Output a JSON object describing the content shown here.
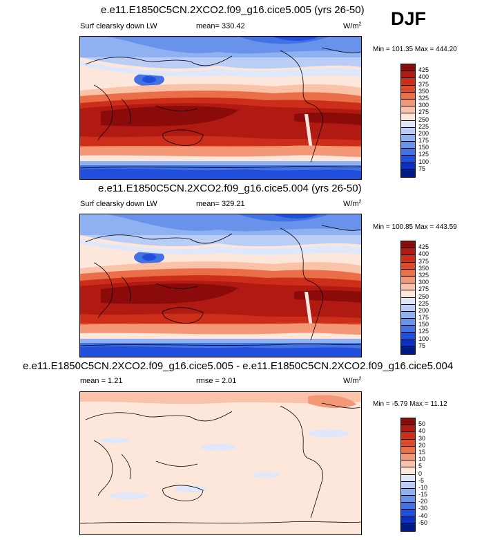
{
  "season": "DJF",
  "panels": [
    {
      "title": "e.e11.E1850C5CN.2XCO2.f09_g16.cice5.005 (yrs 26-50)",
      "left_label": "Surf clearsky down LW",
      "mean_text": "mean= 330.42",
      "units": "W/m",
      "units_sup": "2",
      "minmax": "Min = 101.35 Max = 444.20"
    },
    {
      "title": "e.e11.E1850C5CN.2XCO2.f09_g16.cice5.004 (yrs 26-50)",
      "left_label": "Surf clearsky down LW",
      "mean_text": "mean= 329.21",
      "units": "W/m",
      "units_sup": "2",
      "minmax": "Min = 100.85 Max = 443.59"
    },
    {
      "title": "e.e11.E1850C5CN.2XCO2.f09_g16.cice5.005 - e.e11.E1850C5CN.2XCO2.f09_g16.cice5.004",
      "left_label": "mean =   1.21",
      "mean_text": "rmse =   2.01",
      "units": "W/m",
      "units_sup": "2",
      "minmax": "Min =  -5.79 Max = 11.12"
    }
  ],
  "chart_data": [
    {
      "type": "heatmap",
      "title": "e.e11.E1850C5CN.2XCO2.f09_g16.cice5.005 (yrs 26-50)",
      "variable": "Surf clearsky down LW",
      "units": "W/m2",
      "mean": 330.42,
      "min": 101.35,
      "max": 444.2,
      "colorbar_levels": [
        425,
        400,
        375,
        350,
        325,
        300,
        275,
        250,
        225,
        200,
        175,
        150,
        125,
        100,
        75
      ],
      "colorbar_colors": [
        "#8b0a0a",
        "#b01a12",
        "#cc2e1a",
        "#dd4a28",
        "#ea6e48",
        "#f49776",
        "#fac2a8",
        "#fde6da",
        "#dfe8fb",
        "#b9cdf7",
        "#8fb1f1",
        "#6992ea",
        "#4272e3",
        "#1f4fdc",
        "#0a2fc4",
        "#001a8a"
      ]
    },
    {
      "type": "heatmap",
      "title": "e.e11.E1850C5CN.2XCO2.f09_g16.cice5.004 (yrs 26-50)",
      "variable": "Surf clearsky down LW",
      "units": "W/m2",
      "mean": 329.21,
      "min": 100.85,
      "max": 443.59,
      "colorbar_levels": [
        425,
        400,
        375,
        350,
        325,
        300,
        275,
        250,
        225,
        200,
        175,
        150,
        125,
        100,
        75
      ],
      "colorbar_colors": [
        "#8b0a0a",
        "#b01a12",
        "#cc2e1a",
        "#dd4a28",
        "#ea6e48",
        "#f49776",
        "#fac2a8",
        "#fde6da",
        "#dfe8fb",
        "#b9cdf7",
        "#8fb1f1",
        "#6992ea",
        "#4272e3",
        "#1f4fdc",
        "#0a2fc4",
        "#001a8a"
      ]
    },
    {
      "type": "heatmap",
      "title": "e.e11.E1850C5CN.2XCO2.f09_g16.cice5.005 - e.e11.E1850C5CN.2XCO2.f09_g16.cice5.004",
      "units": "W/m2",
      "mean": 1.21,
      "rmse": 2.01,
      "min": -5.79,
      "max": 11.12,
      "colorbar_levels": [
        50,
        40,
        30,
        20,
        15,
        10,
        5,
        0,
        -5,
        -10,
        -15,
        -20,
        -30,
        -40,
        -50
      ],
      "colorbar_colors": [
        "#8b0a0a",
        "#b01a12",
        "#cc2e1a",
        "#dd4a28",
        "#ea6e48",
        "#f49776",
        "#fac2a8",
        "#fde6da",
        "#dfe8fb",
        "#b9cdf7",
        "#8fb1f1",
        "#6992ea",
        "#4272e3",
        "#1f4fdc",
        "#0a2fc4",
        "#001a8a"
      ]
    }
  ]
}
